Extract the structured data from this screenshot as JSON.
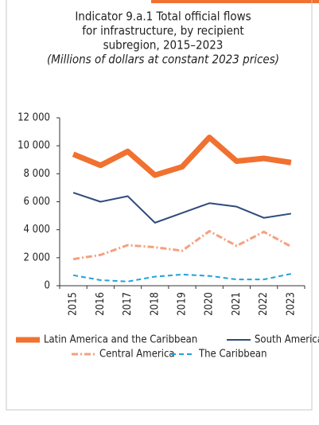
{
  "chart_data": {
    "type": "line",
    "title": [
      "Indicator 9.a.1 Total official flows",
      "for infrastructure, by recipient",
      "subregion, 2015–2023"
    ],
    "subtitle": "(Millions of dollars at constant 2023 prices)",
    "categories": [
      "2015",
      "2016",
      "2017",
      "2018",
      "2019",
      "2020",
      "2021",
      "2022",
      "2023"
    ],
    "series": [
      {
        "name": "Latin America and the Caribbean",
        "color": "#f07130",
        "style": "solid",
        "width": 7,
        "values": [
          9400,
          8600,
          9600,
          7900,
          8500,
          10600,
          8900,
          9100,
          8800
        ]
      },
      {
        "name": "South America",
        "color": "#2f4b7c",
        "style": "solid",
        "width": 2,
        "values": [
          6650,
          6000,
          6400,
          4500,
          5200,
          5900,
          5650,
          4850,
          5150
        ]
      },
      {
        "name": "Central America",
        "color": "#f5a07f",
        "style": "dashdot",
        "width": 3,
        "values": [
          1900,
          2200,
          2900,
          2750,
          2500,
          3900,
          2850,
          3850,
          2800
        ]
      },
      {
        "name": "The Caribbean",
        "color": "#1fa3d8",
        "style": "dashed",
        "width": 2,
        "values": [
          750,
          400,
          300,
          650,
          800,
          700,
          450,
          450,
          850
        ]
      }
    ],
    "ylim": [
      0,
      12000
    ],
    "yticks": [
      0,
      {
        "value": 2000,
        "label": "2 000"
      },
      {
        "value": 4000,
        "label": "4 000"
      },
      {
        "value": 6000,
        "label": "6 000"
      },
      {
        "value": 8000,
        "label": "8 000"
      },
      {
        "value": 10000,
        "label": "10 000"
      },
      {
        "value": 12000,
        "label": "12 000"
      }
    ],
    "grid": false
  }
}
